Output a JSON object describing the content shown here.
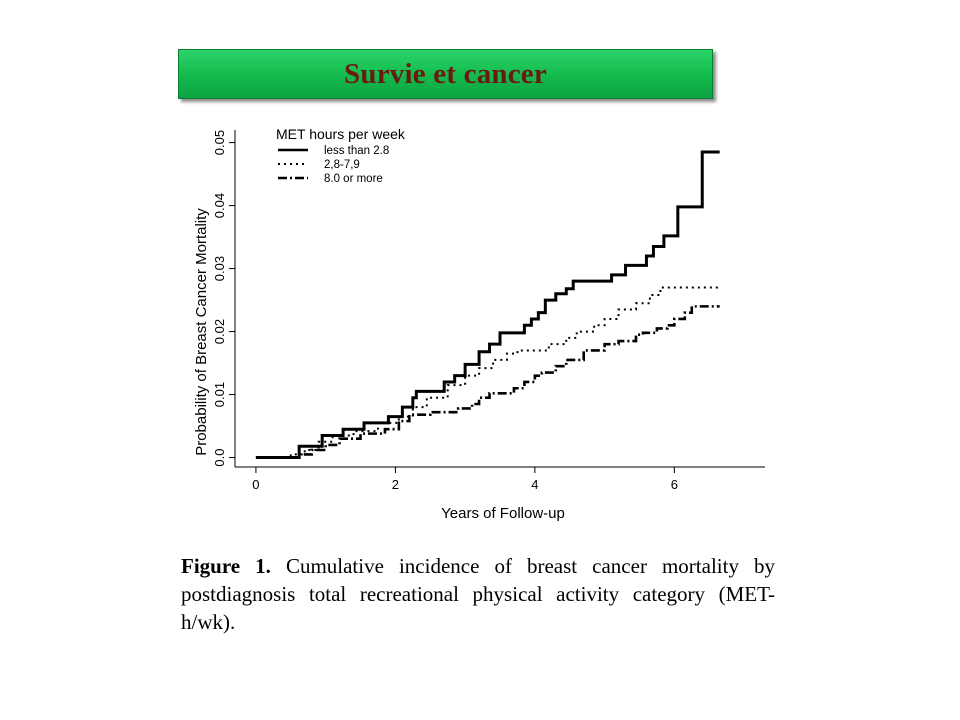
{
  "slide": {
    "title": "Survie et cancer",
    "title_color": "#6b1a12",
    "banner_color": "#12b94c"
  },
  "figure_caption": {
    "label": "Figure 1.",
    "text": "Cumulative incidence of breast cancer mortality by postdiagnosis total recreational physical activity category (MET-h/wk)."
  },
  "chart_data": {
    "type": "line",
    "step": true,
    "title": "",
    "xlabel": "Years of Follow-up",
    "ylabel": "Probability of Breast Cancer Mortality",
    "xlim": [
      -0.3,
      7.3
    ],
    "ylim": [
      -0.0015,
      0.052
    ],
    "x_ticks": [
      0,
      2,
      4,
      6
    ],
    "x_tick_labels": [
      "0",
      "2",
      "4",
      "6"
    ],
    "y_ticks": [
      0.0,
      0.01,
      0.02,
      0.03,
      0.04,
      0.05
    ],
    "y_tick_labels": [
      "0.0",
      "0.01",
      "0.02",
      "0.03",
      "0.04",
      "0.05"
    ],
    "legend_title": "MET hours per week",
    "legend_position": "top-left",
    "grid": false,
    "series": [
      {
        "name": "less than 2.8",
        "style": "solid",
        "x": [
          0,
          0.62,
          0.95,
          1.25,
          1.55,
          1.9,
          2.1,
          2.25,
          2.3,
          2.4,
          2.7,
          2.85,
          3.0,
          3.2,
          3.35,
          3.5,
          3.85,
          3.95,
          4.05,
          4.15,
          4.3,
          4.45,
          4.55,
          5.1,
          5.3,
          5.6,
          5.7,
          5.85,
          6.05,
          6.4,
          6.65
        ],
        "y": [
          0,
          0.0018,
          0.0035,
          0.0045,
          0.0055,
          0.0065,
          0.008,
          0.0095,
          0.0105,
          0.0105,
          0.012,
          0.013,
          0.0148,
          0.0168,
          0.018,
          0.0198,
          0.021,
          0.022,
          0.023,
          0.025,
          0.026,
          0.0268,
          0.028,
          0.029,
          0.0305,
          0.032,
          0.0335,
          0.0352,
          0.0398,
          0.0485,
          0.0485
        ]
      },
      {
        "name": "2,8-7,9",
        "style": "dotted",
        "x": [
          0,
          0.5,
          0.7,
          0.9,
          1.1,
          1.4,
          1.75,
          2.05,
          2.25,
          2.45,
          2.75,
          3.0,
          3.2,
          3.4,
          3.6,
          3.75,
          4.2,
          4.45,
          4.6,
          4.85,
          5.0,
          5.2,
          5.45,
          5.65,
          5.8,
          6.65
        ],
        "y": [
          0,
          0.0005,
          0.0012,
          0.0025,
          0.0035,
          0.0042,
          0.0055,
          0.0065,
          0.008,
          0.0095,
          0.0115,
          0.013,
          0.0142,
          0.0155,
          0.0165,
          0.017,
          0.018,
          0.019,
          0.02,
          0.021,
          0.022,
          0.0235,
          0.0245,
          0.0258,
          0.027,
          0.027
        ]
      },
      {
        "name": "8.0 or more",
        "style": "dashdot",
        "x": [
          0,
          0.6,
          0.8,
          1.0,
          1.2,
          1.5,
          1.85,
          2.05,
          2.2,
          2.5,
          2.9,
          3.1,
          3.2,
          3.35,
          3.7,
          3.85,
          4.0,
          4.1,
          4.3,
          4.45,
          4.7,
          5.0,
          5.2,
          5.45,
          5.55,
          5.75,
          5.9,
          6.0,
          6.15,
          6.25,
          6.65
        ],
        "y": [
          0,
          0.0005,
          0.0012,
          0.002,
          0.003,
          0.0038,
          0.0045,
          0.0058,
          0.0068,
          0.0072,
          0.0078,
          0.0085,
          0.0095,
          0.0102,
          0.011,
          0.012,
          0.013,
          0.0135,
          0.0145,
          0.0155,
          0.017,
          0.018,
          0.0185,
          0.0195,
          0.0198,
          0.0205,
          0.021,
          0.022,
          0.023,
          0.024,
          0.024
        ]
      }
    ]
  }
}
